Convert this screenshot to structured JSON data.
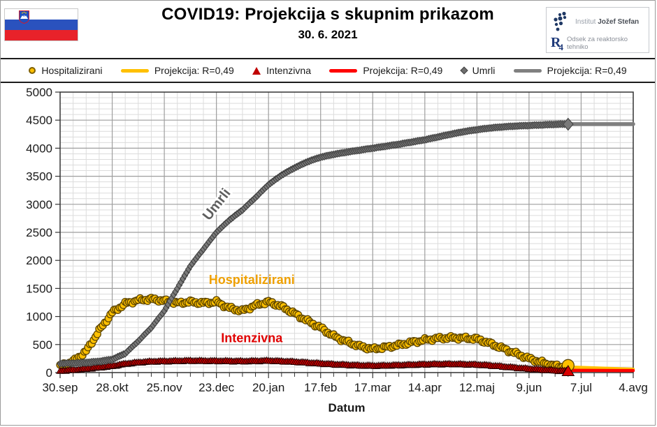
{
  "header": {
    "title": "COVID19: Projekcija s skupnim prikazom",
    "date": "30. 6. 2021",
    "institute_prefix": "Institut",
    "institute_name": "Jožef Stefan",
    "r4_label": "R",
    "r4_sub": "4",
    "department": "Odsek za reaktorsko tehniko"
  },
  "legend": {
    "items": [
      {
        "label": "Hospitalizirani",
        "marker": "circle",
        "color": "#FFC000"
      },
      {
        "label": "Projekcija: R=0,49",
        "marker": "line",
        "color": "#FFC000"
      },
      {
        "label": "Intenzivna",
        "marker": "triangle",
        "color": "#C00000"
      },
      {
        "label": "Projekcija: R=0,49",
        "marker": "line",
        "color": "#FF0000"
      },
      {
        "label": "Umrli",
        "marker": "diamond",
        "color": "#6e6e6e"
      },
      {
        "label": "Projekcija: R=0,49",
        "marker": "line",
        "color": "#808080"
      }
    ]
  },
  "chart_data": {
    "type": "line",
    "title": "COVID19: Projekcija s skupnim prikazom",
    "xlabel": "Datum",
    "ylabel": "",
    "ylim": [
      0,
      5000
    ],
    "y_major_step": 500,
    "y_minor_step": 100,
    "x_minor_step_days": 7,
    "x_major_step_days": 28,
    "x_total_days": 308,
    "data_end_day": 273,
    "x_tick_labels": [
      "30.sep",
      "28.okt",
      "25.nov",
      "23.dec",
      "20.jan",
      "17.feb",
      "17.mar",
      "14.apr",
      "12.maj",
      "9.jun",
      "7.jul",
      "4.avg"
    ],
    "x_tick_days": [
      0,
      28,
      56,
      84,
      112,
      140,
      168,
      196,
      224,
      252,
      280,
      308
    ],
    "grid": true,
    "legend_position": "top",
    "series": [
      {
        "name": "Hospitalizirani",
        "marker": "circle",
        "color": "#FFC000",
        "outline": "#5c4500",
        "points": [
          [
            0,
            120
          ],
          [
            7,
            200
          ],
          [
            14,
            380
          ],
          [
            21,
            750
          ],
          [
            28,
            1070
          ],
          [
            35,
            1230
          ],
          [
            42,
            1290
          ],
          [
            49,
            1310
          ],
          [
            56,
            1280
          ],
          [
            63,
            1240
          ],
          [
            70,
            1260
          ],
          [
            77,
            1240
          ],
          [
            84,
            1260
          ],
          [
            91,
            1150
          ],
          [
            98,
            1100
          ],
          [
            105,
            1200
          ],
          [
            112,
            1260
          ],
          [
            119,
            1180
          ],
          [
            126,
            1050
          ],
          [
            133,
            920
          ],
          [
            140,
            800
          ],
          [
            147,
            650
          ],
          [
            154,
            550
          ],
          [
            161,
            470
          ],
          [
            168,
            420
          ],
          [
            175,
            450
          ],
          [
            182,
            490
          ],
          [
            189,
            540
          ],
          [
            196,
            580
          ],
          [
            203,
            610
          ],
          [
            210,
            620
          ],
          [
            217,
            615
          ],
          [
            224,
            600
          ],
          [
            231,
            520
          ],
          [
            238,
            430
          ],
          [
            245,
            340
          ],
          [
            252,
            250
          ],
          [
            259,
            180
          ],
          [
            266,
            120
          ],
          [
            273,
            100
          ]
        ]
      },
      {
        "name": "Intenzivna",
        "marker": "triangle",
        "color": "#D90000",
        "outline": "#240000",
        "points": [
          [
            0,
            35
          ],
          [
            7,
            50
          ],
          [
            14,
            70
          ],
          [
            21,
            95
          ],
          [
            28,
            120
          ],
          [
            35,
            160
          ],
          [
            42,
            185
          ],
          [
            49,
            200
          ],
          [
            56,
            205
          ],
          [
            63,
            210
          ],
          [
            70,
            215
          ],
          [
            77,
            212
          ],
          [
            84,
            210
          ],
          [
            91,
            208
          ],
          [
            98,
            205
          ],
          [
            105,
            210
          ],
          [
            112,
            215
          ],
          [
            119,
            205
          ],
          [
            126,
            195
          ],
          [
            133,
            180
          ],
          [
            140,
            165
          ],
          [
            147,
            150
          ],
          [
            154,
            140
          ],
          [
            161,
            130
          ],
          [
            168,
            125
          ],
          [
            175,
            128
          ],
          [
            182,
            135
          ],
          [
            189,
            142
          ],
          [
            196,
            150
          ],
          [
            203,
            153
          ],
          [
            210,
            155
          ],
          [
            217,
            150
          ],
          [
            224,
            145
          ],
          [
            231,
            130
          ],
          [
            238,
            110
          ],
          [
            245,
            90
          ],
          [
            252,
            70
          ],
          [
            259,
            55
          ],
          [
            266,
            40
          ],
          [
            273,
            32
          ]
        ]
      },
      {
        "name": "Umrli",
        "marker": "diamond",
        "color": "#7a7a7a",
        "outline": "#3c3c3c",
        "points": [
          [
            0,
            160
          ],
          [
            7,
            168
          ],
          [
            14,
            180
          ],
          [
            21,
            200
          ],
          [
            28,
            235
          ],
          [
            35,
            340
          ],
          [
            42,
            560
          ],
          [
            49,
            800
          ],
          [
            56,
            1100
          ],
          [
            63,
            1500
          ],
          [
            70,
            1900
          ],
          [
            77,
            2200
          ],
          [
            84,
            2500
          ],
          [
            91,
            2720
          ],
          [
            98,
            2900
          ],
          [
            105,
            3120
          ],
          [
            112,
            3350
          ],
          [
            119,
            3520
          ],
          [
            126,
            3650
          ],
          [
            133,
            3760
          ],
          [
            140,
            3840
          ],
          [
            147,
            3890
          ],
          [
            154,
            3930
          ],
          [
            161,
            3965
          ],
          [
            168,
            4000
          ],
          [
            175,
            4035
          ],
          [
            182,
            4070
          ],
          [
            189,
            4110
          ],
          [
            196,
            4150
          ],
          [
            203,
            4200
          ],
          [
            210,
            4250
          ],
          [
            217,
            4295
          ],
          [
            224,
            4330
          ],
          [
            231,
            4360
          ],
          [
            238,
            4380
          ],
          [
            245,
            4395
          ],
          [
            252,
            4405
          ],
          [
            259,
            4415
          ],
          [
            266,
            4425
          ],
          [
            273,
            4430
          ]
        ]
      }
    ],
    "projections": [
      {
        "name": "Projekcija: R=0,49",
        "color": "#FFC000",
        "width": 4.5,
        "points": [
          [
            273,
            100
          ],
          [
            308,
            60
          ]
        ]
      },
      {
        "name": "Projekcija: R=0,49",
        "color": "#FF0000",
        "width": 4.5,
        "points": [
          [
            273,
            40
          ],
          [
            308,
            35
          ]
        ]
      },
      {
        "name": "Projekcija: R=0,49",
        "color": "#7F7F7F",
        "width": 5.5,
        "points": [
          [
            273,
            4430
          ],
          [
            308,
            4430
          ]
        ]
      }
    ],
    "annotations": [
      {
        "text": "Umrli",
        "day": 86,
        "value": 2950,
        "rotate": -52,
        "color": "#5f5f5f",
        "halo": true,
        "size": 20
      },
      {
        "text": "Hospitalizirani",
        "day": 103,
        "value": 1580,
        "rotate": 0,
        "color": "#EFA000",
        "halo": false,
        "size": 18
      },
      {
        "text": "Intenzivna",
        "day": 103,
        "value": 540,
        "rotate": 0,
        "color": "#E00000",
        "halo": false,
        "size": 18
      }
    ],
    "colors": {
      "grid_minor": "#DCDCDC",
      "grid_major": "#9E9E9E",
      "plot_border": "#333333",
      "axis_text": "#1a1a1a"
    }
  }
}
